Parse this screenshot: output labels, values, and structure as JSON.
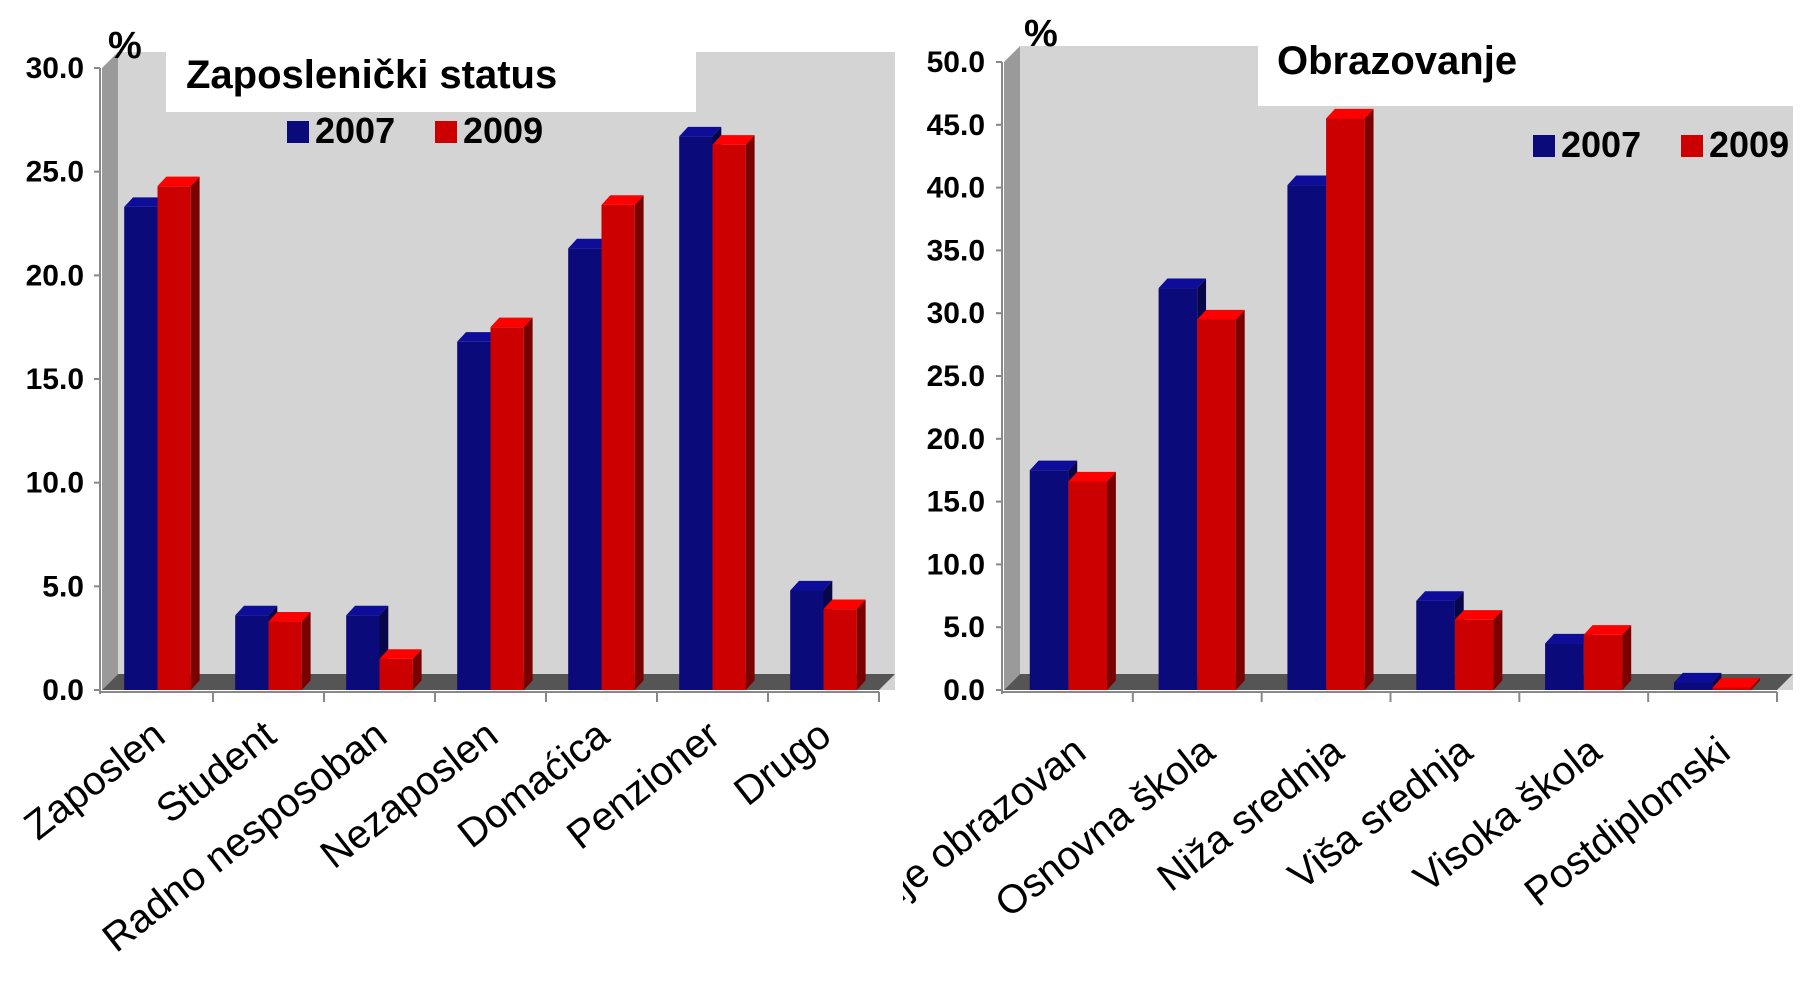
{
  "colors": {
    "series_2007": "#0a0a7a",
    "series_2009": "#cc0000",
    "plot_bg": "#d4d4d4",
    "floor": "#555555",
    "wall_side": "#9a9a9a"
  },
  "chart_data": [
    {
      "type": "bar",
      "title": "Zaposlenički status",
      "ylabel": "%",
      "ylim": [
        0,
        30
      ],
      "ytick_labels": [
        "0.0",
        "5.0",
        "10.0",
        "15.0",
        "20.0",
        "25.0",
        "30.0"
      ],
      "categories": [
        "Zaposlen",
        "Student",
        "Radno nesposoban",
        "Nezaposlen",
        "Domaćica",
        "Penzioner",
        "Drugo"
      ],
      "series": [
        {
          "name": "2007",
          "values": [
            23.3,
            3.6,
            3.6,
            16.8,
            21.3,
            26.7,
            4.8
          ]
        },
        {
          "name": "2009",
          "values": [
            24.3,
            3.3,
            1.5,
            17.5,
            23.4,
            26.3,
            3.9
          ]
        }
      ],
      "legend_position": "top-right",
      "grid": false
    },
    {
      "type": "bar",
      "title": "Obrazovanje",
      "ylabel": "%",
      "ylim": [
        0,
        50
      ],
      "ytick_labels": [
        "0.0",
        "5.0",
        "10.0",
        "15.0",
        "20.0",
        "25.0",
        "30.0",
        "35.0",
        "40.0",
        "45.0",
        "50.0"
      ],
      "categories": [
        "Nije obrazovan",
        "Osnovna škola",
        "Niža srednja",
        "Viša srednja",
        "Visoka škola",
        "Postdiplomski"
      ],
      "series": [
        {
          "name": "2007",
          "values": [
            17.5,
            32.0,
            40.2,
            7.1,
            3.7,
            0.6
          ]
        },
        {
          "name": "2009",
          "values": [
            16.6,
            29.5,
            45.5,
            5.6,
            4.4,
            0.2
          ]
        }
      ],
      "legend_position": "top-right",
      "grid": false
    }
  ]
}
